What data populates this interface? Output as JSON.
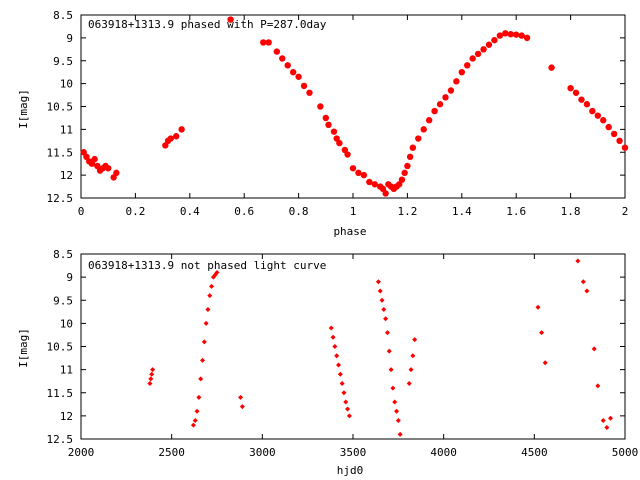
{
  "colors": {
    "series": "#ff0000",
    "axis": "#000000",
    "background": "#ffffff"
  },
  "chart_data": [
    {
      "type": "scatter",
      "title": "063918+1313.9 phased with P=287.0day",
      "xlabel": "phase",
      "ylabel": "I[mag]",
      "xlim": [
        0,
        2
      ],
      "ylim": [
        12.5,
        8.5
      ],
      "y_inverted": true,
      "grid": false,
      "legend": "none",
      "xticks": [
        "0",
        "0.2",
        "0.4",
        "0.6",
        "0.8",
        "1",
        "1.2",
        "1.4",
        "1.6",
        "1.8",
        "2"
      ],
      "yticks": [
        "8.5",
        "9",
        "9.5",
        "10",
        "10.5",
        "11",
        "11.5",
        "12",
        "12.5"
      ],
      "series": [
        {
          "x": [
            0.01,
            0.02,
            0.03,
            0.04,
            0.05,
            0.06,
            0.07,
            0.08,
            0.09,
            0.1,
            0.12,
            0.13,
            0.31,
            0.32,
            0.33,
            0.35,
            0.37,
            0.55,
            0.67,
            0.69,
            0.72,
            0.74,
            0.76,
            0.78,
            0.8,
            0.82,
            0.84,
            0.88,
            0.9,
            0.91,
            0.93,
            0.94,
            0.95,
            0.97,
            0.98,
            1.0,
            1.02,
            1.04,
            1.06,
            1.08,
            1.1,
            1.11,
            1.12,
            1.13,
            1.14,
            1.15,
            1.16,
            1.17,
            1.18,
            1.19,
            1.2,
            1.21,
            1.22,
            1.24,
            1.26,
            1.28,
            1.3,
            1.32,
            1.34,
            1.36,
            1.38,
            1.4,
            1.42,
            1.44,
            1.46,
            1.48,
            1.5,
            1.52,
            1.54,
            1.56,
            1.58,
            1.6,
            1.62,
            1.64,
            1.73,
            1.8,
            1.82,
            1.84,
            1.86,
            1.88,
            1.9,
            1.92,
            1.94,
            1.96,
            1.98,
            2.0
          ],
          "y": [
            11.5,
            11.6,
            11.7,
            11.75,
            11.65,
            11.8,
            11.9,
            11.85,
            11.8,
            11.85,
            12.05,
            11.95,
            11.35,
            11.25,
            11.2,
            11.15,
            11.0,
            8.6,
            9.1,
            9.1,
            9.3,
            9.45,
            9.6,
            9.75,
            9.85,
            10.05,
            10.2,
            10.5,
            10.75,
            10.9,
            11.05,
            11.2,
            11.3,
            11.45,
            11.55,
            11.85,
            11.95,
            12.0,
            12.15,
            12.2,
            12.25,
            12.3,
            12.4,
            12.2,
            12.25,
            12.3,
            12.25,
            12.2,
            12.1,
            11.95,
            11.8,
            11.6,
            11.4,
            11.2,
            11.0,
            10.8,
            10.6,
            10.45,
            10.3,
            10.15,
            9.95,
            9.75,
            9.6,
            9.45,
            9.35,
            9.25,
            9.15,
            9.05,
            8.95,
            8.9,
            8.92,
            8.93,
            8.95,
            9.0,
            9.65,
            10.1,
            10.2,
            10.35,
            10.45,
            10.6,
            10.7,
            10.8,
            10.95,
            11.1,
            11.25,
            11.4
          ],
          "marker": "filled-circle"
        }
      ]
    },
    {
      "type": "scatter",
      "title": "063918+1313.9 not phased light curve",
      "xlabel": "hjd0",
      "ylabel": "I[mag]",
      "xlim": [
        2000,
        5000
      ],
      "ylim": [
        12.5,
        8.5
      ],
      "y_inverted": true,
      "grid": false,
      "legend": "none",
      "xticks": [
        "2000",
        "2500",
        "3000",
        "3500",
        "4000",
        "4500",
        "5000"
      ],
      "yticks": [
        "8.5",
        "9",
        "9.5",
        "10",
        "10.5",
        "11",
        "11.5",
        "12",
        "12.5"
      ],
      "series": [
        {
          "x": [
            2380,
            2385,
            2390,
            2395,
            2620,
            2630,
            2640,
            2650,
            2660,
            2670,
            2680,
            2690,
            2700,
            2710,
            2720,
            2730,
            2740,
            2750,
            2880,
            2890,
            3380,
            3390,
            3400,
            3410,
            3420,
            3430,
            3440,
            3450,
            3460,
            3470,
            3480,
            3640,
            3650,
            3660,
            3670,
            3680,
            3690,
            3700,
            3710,
            3720,
            3730,
            3740,
            3750,
            3760,
            3810,
            3820,
            3830,
            3840,
            4520,
            4540,
            4560,
            4740,
            4770,
            4790,
            4830,
            4850,
            4880,
            4900,
            4920
          ],
          "y": [
            11.3,
            11.2,
            11.1,
            11.0,
            12.2,
            12.1,
            11.9,
            11.6,
            11.2,
            10.8,
            10.4,
            10.0,
            9.7,
            9.4,
            9.2,
            9.0,
            8.95,
            8.9,
            11.6,
            11.8,
            10.1,
            10.3,
            10.5,
            10.7,
            10.9,
            11.1,
            11.3,
            11.5,
            11.7,
            11.85,
            12.0,
            9.1,
            9.3,
            9.5,
            9.7,
            9.9,
            10.2,
            10.6,
            11.0,
            11.4,
            11.7,
            11.9,
            12.1,
            12.4,
            11.3,
            11.0,
            10.7,
            10.35,
            9.65,
            10.2,
            10.85,
            8.65,
            9.1,
            9.3,
            10.55,
            11.35,
            12.1,
            12.25,
            12.05
          ],
          "marker": "filled-diamond"
        }
      ]
    }
  ]
}
